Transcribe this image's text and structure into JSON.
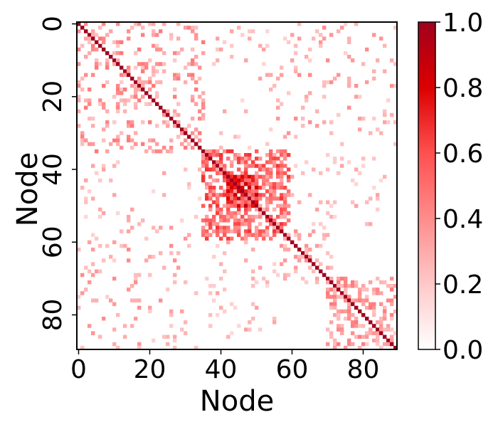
{
  "chart_data": {
    "type": "heatmap",
    "title": "",
    "xlabel": "Node",
    "ylabel": "Node",
    "n": 90,
    "xticks": [
      0,
      20,
      40,
      60,
      80
    ],
    "yticks": [
      0,
      20,
      40,
      60,
      80
    ],
    "xlim": [
      0,
      90
    ],
    "ylim": [
      90,
      0
    ],
    "colormap": "Reds",
    "vmin": 0.0,
    "vmax": 1.0,
    "colorbar_ticks": [
      "0.0",
      "0.2",
      "0.4",
      "0.6",
      "0.8",
      "1.0"
    ],
    "colorbar_stops": [
      "#ffffff",
      "#ffc8c8",
      "#ff8c8c",
      "#ff5050",
      "#dc0000",
      "#a0001e"
    ],
    "diagonal_value": 1.0,
    "blocks": [
      {
        "rows": [
          0,
          36
        ],
        "cols": [
          0,
          36
        ],
        "value": 0.35,
        "density": 0.22
      },
      {
        "rows": [
          35,
          60
        ],
        "cols": [
          35,
          60
        ],
        "value": 0.5,
        "density": 0.55
      },
      {
        "rows": [
          42,
          51
        ],
        "cols": [
          42,
          51
        ],
        "value": 0.68,
        "density": 0.9
      },
      {
        "rows": [
          70,
          90
        ],
        "cols": [
          70,
          90
        ],
        "value": 0.35,
        "density": 0.35
      },
      {
        "rows": [
          56,
          72
        ],
        "cols": [
          56,
          72
        ],
        "value": 0.3,
        "density": 0.2
      },
      {
        "rows": [
          0,
          36
        ],
        "cols": [
          55,
          90
        ],
        "value": 0.3,
        "density": 0.07
      },
      {
        "rows": [
          0,
          36
        ],
        "cols": [
          36,
          55
        ],
        "value": 0.25,
        "density": 0.04
      },
      {
        "rows": [
          36,
          90
        ],
        "cols": [
          0,
          36
        ],
        "value": 0.3,
        "density": 0.07
      },
      {
        "rows": [
          56,
          90
        ],
        "cols": [
          36,
          56
        ],
        "value": 0.3,
        "density": 0.06
      },
      {
        "rows": [
          36,
          56
        ],
        "cols": [
          60,
          90
        ],
        "value": 0.25,
        "density": 0.07
      }
    ]
  }
}
